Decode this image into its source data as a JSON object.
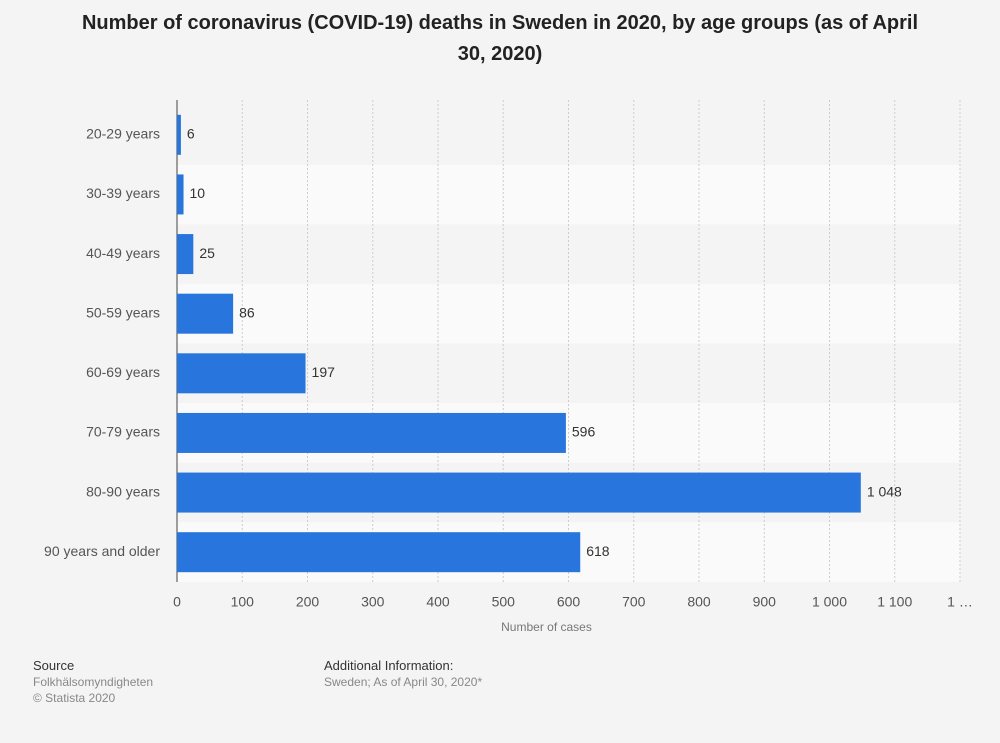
{
  "chart_data": {
    "type": "bar",
    "orientation": "horizontal",
    "title": "Number of coronavirus (COVID-19) deaths in Sweden in 2020, by age groups (as of April 30, 2020)",
    "x_label": "Number of cases",
    "categories": [
      "20-29 years",
      "30-39 years",
      "40-49 years",
      "50-59 years",
      "60-69 years",
      "70-79 years",
      "80-90 years",
      "90 years and older"
    ],
    "values": [
      6,
      10,
      25,
      86,
      197,
      596,
      1048,
      618
    ],
    "value_labels": [
      "6",
      "10",
      "25",
      "86",
      "197",
      "596",
      "1 048",
      "618"
    ],
    "color": "#2876dd",
    "xlim": [
      0,
      1200
    ],
    "xticks": [
      0,
      100,
      200,
      300,
      400,
      500,
      600,
      700,
      800,
      900,
      {
        "value": 1000,
        "label": "1 000"
      },
      {
        "value": 1100,
        "label": "1 100"
      },
      {
        "value": 1200,
        "label": "1 …"
      }
    ],
    "grid": true
  },
  "footer": {
    "source_heading": "Source",
    "source": "Folkhälsomyndigheten",
    "copyright": "© Statista 2020",
    "additional_heading": "Additional Information:",
    "additional": "Sweden; As of April 30, 2020*"
  }
}
